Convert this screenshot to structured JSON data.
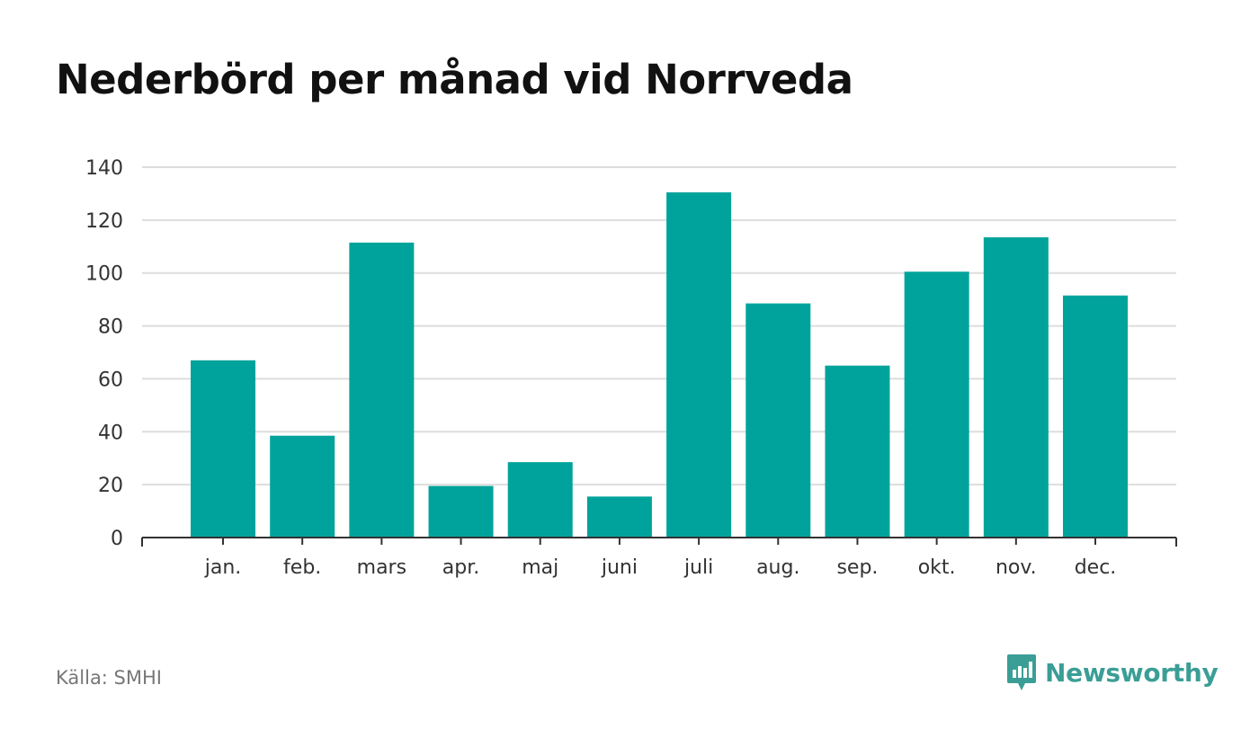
{
  "title": "Nederbörd per månad vid Norrveda",
  "source": "Källa: SMHI",
  "brand": {
    "name": "Newsworthy",
    "icon": "newsworthy-logo-icon",
    "color": "#3a9e96"
  },
  "chart_data": {
    "type": "bar",
    "title": "Nederbörd per månad vid Norrveda",
    "categories": [
      "jan.",
      "feb.",
      "mars",
      "apr.",
      "maj",
      "juni",
      "juli",
      "aug.",
      "sep.",
      "okt.",
      "nov.",
      "dec."
    ],
    "values": [
      67,
      38.5,
      111.5,
      19.5,
      28.5,
      15.5,
      130.5,
      88.5,
      65,
      100.5,
      113.5,
      91.5
    ],
    "ylim": [
      0,
      140
    ],
    "yticks": [
      0,
      20,
      40,
      60,
      80,
      100,
      120,
      140
    ],
    "grid": true,
    "bar_color": "#00a39b",
    "grid_color": "#dddddd"
  }
}
